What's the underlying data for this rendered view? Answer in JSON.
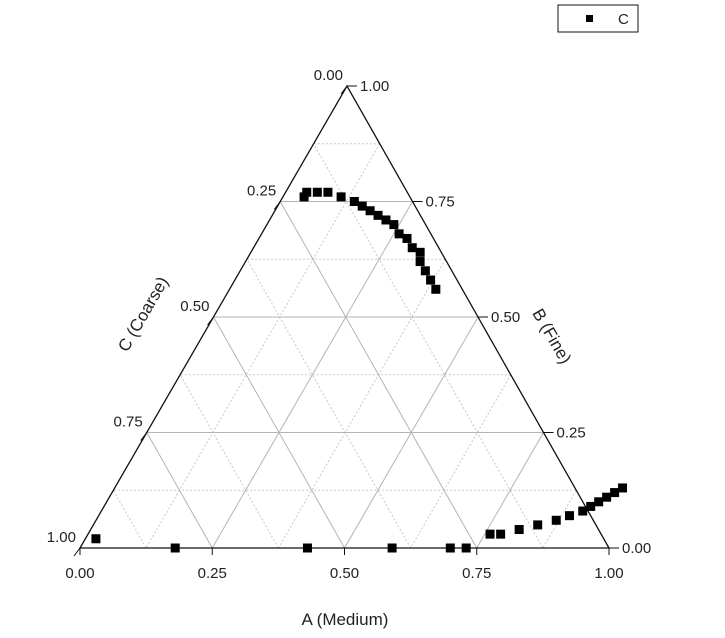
{
  "chart_data": {
    "type": "scatter",
    "subtype": "ternary",
    "axes": {
      "A": {
        "title": "A (Medium)",
        "ticks": [
          "0.00",
          "0.25",
          "0.50",
          "0.75",
          "1.00"
        ]
      },
      "B": {
        "title": "B (Fine)",
        "ticks": [
          "0.00",
          "0.25",
          "0.50",
          "0.75",
          "1.00"
        ]
      },
      "C": {
        "title": "C (Coarse)",
        "ticks": [
          "0.00",
          "0.25",
          "0.50",
          "0.75",
          "1.00"
        ]
      }
    },
    "grid": true,
    "grid_major_step": 0.25,
    "grid_minor_step": 0.125,
    "legend": {
      "position": "top-right",
      "entries": [
        "C"
      ]
    },
    "series": [
      {
        "name": "C",
        "marker": "square",
        "color": "#000000",
        "points": [
          {
            "A": 0.02,
            "B": 0.02,
            "C": 0.96
          },
          {
            "A": 0.18,
            "B": 0.0,
            "C": 0.82
          },
          {
            "A": 0.43,
            "B": 0.0,
            "C": 0.57
          },
          {
            "A": 0.59,
            "B": 0.0,
            "C": 0.41
          },
          {
            "A": 0.7,
            "B": 0.0,
            "C": 0.3
          },
          {
            "A": 0.73,
            "B": 0.0,
            "C": 0.27
          },
          {
            "A": 0.76,
            "B": 0.03,
            "C": 0.21
          },
          {
            "A": 0.78,
            "B": 0.03,
            "C": 0.19
          },
          {
            "A": 0.81,
            "B": 0.04,
            "C": 0.15
          },
          {
            "A": 0.84,
            "B": 0.05,
            "C": 0.11
          },
          {
            "A": 0.87,
            "B": 0.06,
            "C": 0.07
          },
          {
            "A": 0.89,
            "B": 0.07,
            "C": 0.04
          },
          {
            "A": 0.91,
            "B": 0.08,
            "C": 0.01
          },
          {
            "A": 0.92,
            "B": 0.09,
            "C": -0.01
          },
          {
            "A": 0.93,
            "B": 0.1,
            "C": -0.03
          },
          {
            "A": 0.94,
            "B": 0.11,
            "C": -0.05
          },
          {
            "A": 0.95,
            "B": 0.12,
            "C": -0.07
          },
          {
            "A": 0.96,
            "B": 0.13,
            "C": -0.09
          },
          {
            "A": 0.04,
            "B": 0.76,
            "C": 0.2
          },
          {
            "A": 0.04,
            "B": 0.77,
            "C": 0.19
          },
          {
            "A": 0.06,
            "B": 0.77,
            "C": 0.17
          },
          {
            "A": 0.08,
            "B": 0.77,
            "C": 0.15
          },
          {
            "A": 0.11,
            "B": 0.76,
            "C": 0.13
          },
          {
            "A": 0.14,
            "B": 0.75,
            "C": 0.11
          },
          {
            "A": 0.16,
            "B": 0.74,
            "C": 0.1
          },
          {
            "A": 0.18,
            "B": 0.73,
            "C": 0.09
          },
          {
            "A": 0.2,
            "B": 0.72,
            "C": 0.08
          },
          {
            "A": 0.22,
            "B": 0.71,
            "C": 0.07
          },
          {
            "A": 0.24,
            "B": 0.7,
            "C": 0.06
          },
          {
            "A": 0.26,
            "B": 0.68,
            "C": 0.06
          },
          {
            "A": 0.28,
            "B": 0.67,
            "C": 0.05
          },
          {
            "A": 0.3,
            "B": 0.65,
            "C": 0.05
          },
          {
            "A": 0.32,
            "B": 0.64,
            "C": 0.04
          },
          {
            "A": 0.33,
            "B": 0.62,
            "C": 0.05
          },
          {
            "A": 0.35,
            "B": 0.6,
            "C": 0.05
          },
          {
            "A": 0.37,
            "B": 0.58,
            "C": 0.05
          },
          {
            "A": 0.39,
            "B": 0.56,
            "C": 0.05
          }
        ]
      }
    ]
  }
}
